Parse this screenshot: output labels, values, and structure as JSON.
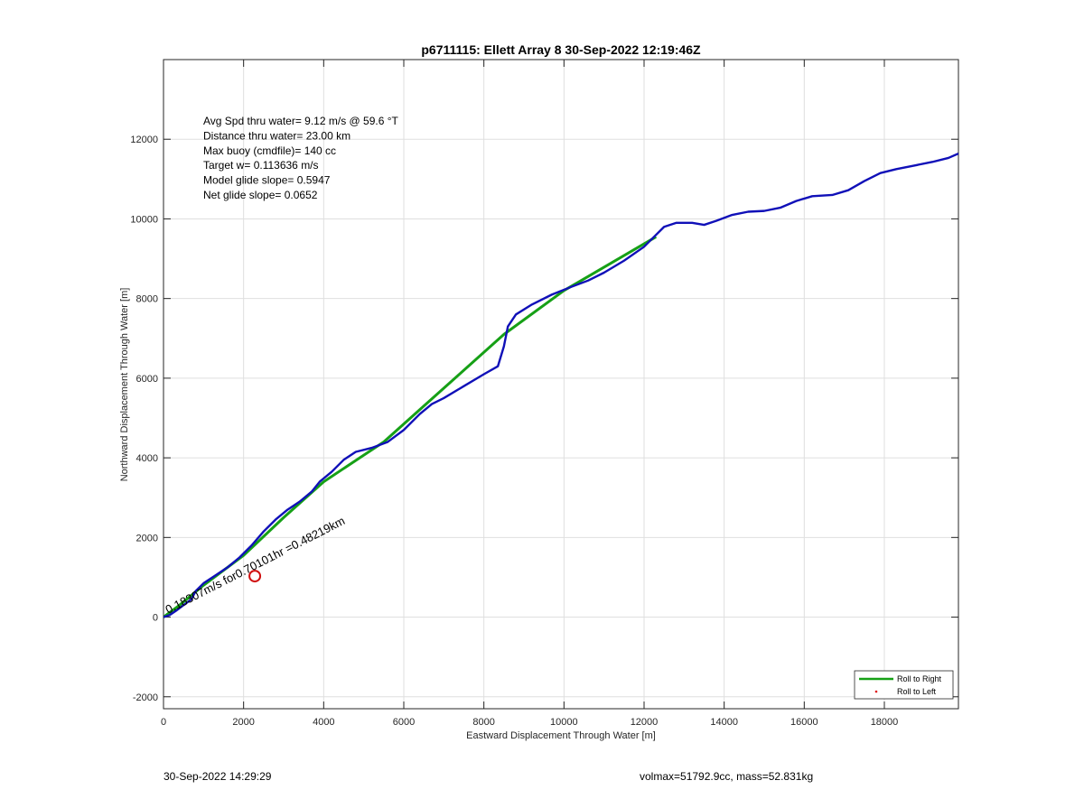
{
  "chart_data": {
    "type": "line",
    "title": "p6711115: Ellett Array 8 30-Sep-2022 12:19:46Z",
    "xlabel": "Eastward Displacement Through Water [m]",
    "ylabel": "Northward Displacement Through Water [m]",
    "xlim": [
      0,
      19850
    ],
    "ylim": [
      -2300,
      14000
    ],
    "xticks": [
      0,
      2000,
      4000,
      6000,
      8000,
      10000,
      12000,
      14000,
      16000,
      18000
    ],
    "yticks": [
      -2000,
      0,
      2000,
      4000,
      6000,
      8000,
      10000,
      12000
    ],
    "grid": true,
    "legend_position": "bottom-right",
    "annotations": [
      "Avg Spd thru water=  9.12 m/s @  59.6 °T",
      "Distance thru water= 23.00 km",
      "Max buoy (cmdfile)= 140 cc",
      "Target w= 0.113636 m/s",
      "Model glide slope= 0.5947",
      "Net glide slope= 0.0652"
    ],
    "drift_label": "0.18307m/s for0.70101hr =0.48219km",
    "marker_point": {
      "x": 2280,
      "y": 1030
    },
    "series": [
      {
        "name": "Roll to Right",
        "color": "#16a016",
        "points": [
          [
            0,
            0
          ],
          [
            400,
            300
          ],
          [
            1000,
            800
          ],
          [
            2000,
            1550
          ],
          [
            3000,
            2500
          ],
          [
            4000,
            3400
          ],
          [
            5500,
            4400
          ],
          [
            6500,
            5300
          ],
          [
            8500,
            7100
          ],
          [
            10000,
            8200
          ],
          [
            12300,
            9550
          ]
        ]
      },
      {
        "name": "Roll to Left",
        "color": "#e01010"
      },
      {
        "color": "#1010b8",
        "points": [
          [
            0,
            0
          ],
          [
            150,
            50
          ],
          [
            300,
            150
          ],
          [
            500,
            300
          ],
          [
            700,
            450
          ],
          [
            800,
            650
          ],
          [
            1000,
            850
          ],
          [
            1300,
            1050
          ],
          [
            1600,
            1250
          ],
          [
            1900,
            1500
          ],
          [
            2200,
            1800
          ],
          [
            2500,
            2150
          ],
          [
            2800,
            2450
          ],
          [
            3100,
            2700
          ],
          [
            3400,
            2900
          ],
          [
            3700,
            3150
          ],
          [
            3900,
            3400
          ],
          [
            4200,
            3650
          ],
          [
            4500,
            3950
          ],
          [
            4800,
            4150
          ],
          [
            5200,
            4250
          ],
          [
            5600,
            4400
          ],
          [
            6000,
            4700
          ],
          [
            6400,
            5100
          ],
          [
            6700,
            5350
          ],
          [
            7000,
            5500
          ],
          [
            7500,
            5800
          ],
          [
            8000,
            6100
          ],
          [
            8350,
            6300
          ],
          [
            8500,
            6800
          ],
          [
            8600,
            7300
          ],
          [
            8800,
            7600
          ],
          [
            9200,
            7850
          ],
          [
            9700,
            8100
          ],
          [
            10200,
            8300
          ],
          [
            10600,
            8450
          ],
          [
            11000,
            8650
          ],
          [
            11500,
            8950
          ],
          [
            12000,
            9300
          ],
          [
            12300,
            9600
          ],
          [
            12500,
            9800
          ],
          [
            12800,
            9900
          ],
          [
            13200,
            9900
          ],
          [
            13500,
            9850
          ],
          [
            13800,
            9950
          ],
          [
            14200,
            10100
          ],
          [
            14600,
            10180
          ],
          [
            15000,
            10200
          ],
          [
            15400,
            10280
          ],
          [
            15800,
            10450
          ],
          [
            16200,
            10570
          ],
          [
            16700,
            10600
          ],
          [
            17100,
            10720
          ],
          [
            17500,
            10950
          ],
          [
            17900,
            11150
          ],
          [
            18300,
            11250
          ],
          [
            18800,
            11350
          ],
          [
            19200,
            11430
          ],
          [
            19600,
            11530
          ],
          [
            19850,
            11640
          ]
        ]
      }
    ]
  },
  "footer": {
    "timestamp": "30-Sep-2022 14:29:29",
    "summary": "volmax=51792.9cc, mass=52.831kg"
  }
}
